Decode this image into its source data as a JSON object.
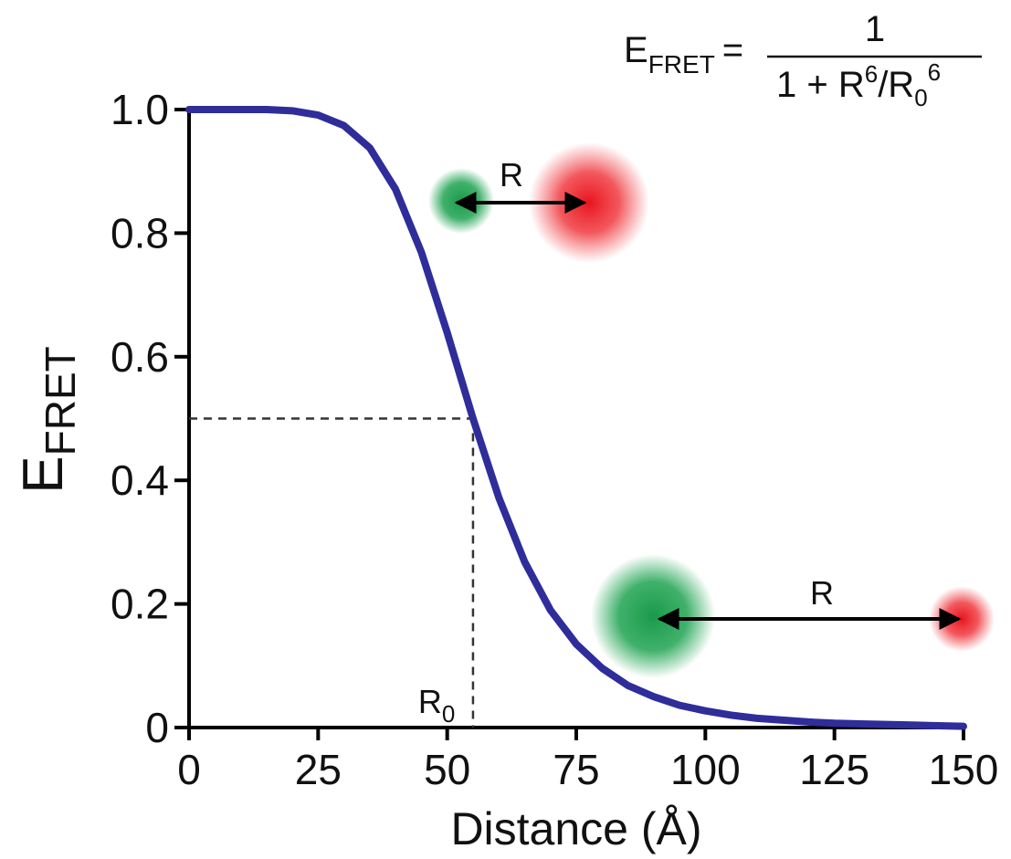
{
  "chart_data": {
    "type": "line",
    "formula": {
      "lhs": "E",
      "lhs_sub": "FRET",
      "equals": "=",
      "numerator": "1",
      "den_a": "1 + R",
      "den_sup1": "6",
      "den_b": "/R",
      "den_sub": "0",
      "den_sup2": "6"
    },
    "y_label": {
      "main": "E",
      "sub": "FRET"
    },
    "x_label": "Distance (Å)",
    "x": [
      0,
      5,
      10,
      15,
      20,
      25,
      30,
      35,
      40,
      45,
      50,
      55,
      60,
      65,
      70,
      75,
      80,
      85,
      90,
      95,
      100,
      105,
      110,
      115,
      120,
      125,
      130,
      135,
      140,
      145,
      150
    ],
    "series": [
      {
        "color": "#2e2d9a",
        "values": [
          1,
          1,
          1,
          1,
          0.998,
          0.991,
          0.974,
          0.938,
          0.871,
          0.769,
          0.639,
          0.5,
          0.372,
          0.268,
          0.19,
          0.135,
          0.096,
          0.068,
          0.05,
          0.036,
          0.027,
          0.02,
          0.015,
          0.012,
          0.009,
          0.007,
          0.006,
          0.005,
          0.004,
          0.003,
          0.002
        ]
      }
    ],
    "xlim": [
      0,
      150
    ],
    "ylim": [
      0,
      1
    ],
    "xticks": [
      0,
      25,
      50,
      75,
      100,
      125,
      150
    ],
    "yticks": [
      0,
      0.2,
      0.4,
      0.6,
      0.8,
      {
        "value": 1,
        "label": "1.0"
      }
    ],
    "r0_marker": {
      "x": 55,
      "y": 0.5,
      "label": "R",
      "sub": "0"
    },
    "annotations": [
      "R",
      "R"
    ]
  }
}
